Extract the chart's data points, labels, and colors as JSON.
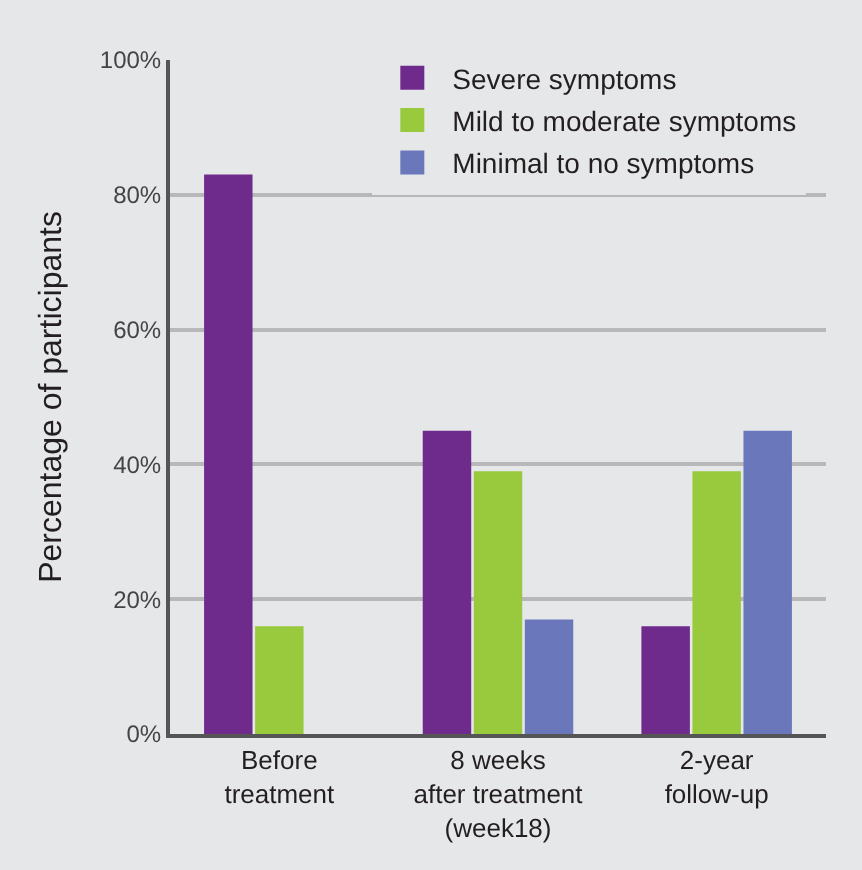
{
  "chart_data": {
    "type": "bar",
    "ylabel": "Percentage of participants",
    "categories": [
      "Before\ntreatment",
      "8 weeks\nafter treatment\n(week18)",
      "2-year\nfollow-up"
    ],
    "series": [
      {
        "name": "Severe symptoms",
        "color": "#6e2b8c",
        "values": [
          83,
          45,
          16
        ]
      },
      {
        "name": "Mild to moderate symptoms",
        "color": "#99c93c",
        "values": [
          16,
          39,
          39
        ]
      },
      {
        "name": "Minimal to no symptoms",
        "color": "#6a78bb",
        "values": [
          null,
          17,
          45
        ]
      }
    ],
    "ylim": [
      0,
      100
    ],
    "yticks": [
      {
        "value": 0,
        "label": "0%"
      },
      {
        "value": 20,
        "label": "20%"
      },
      {
        "value": 40,
        "label": "40%"
      },
      {
        "value": 60,
        "label": "60%"
      },
      {
        "value": 80,
        "label": "80%"
      },
      {
        "value": 100,
        "label": "100%"
      }
    ],
    "grid": "y",
    "legend": "top right"
  }
}
